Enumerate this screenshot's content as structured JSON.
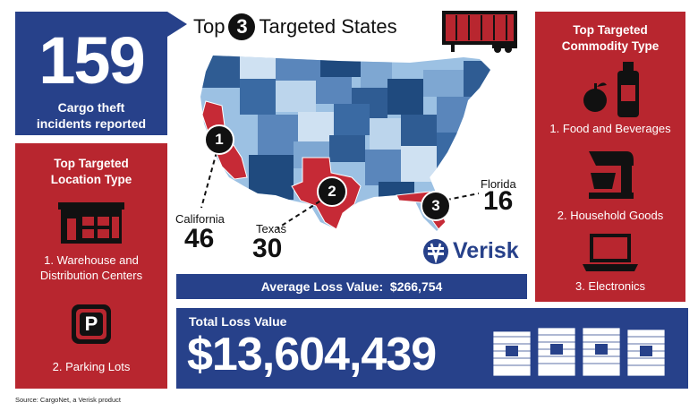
{
  "incidents": {
    "number": "159",
    "caption": "Cargo theft incidents reported"
  },
  "map": {
    "title_before": "Top",
    "title_number": "3",
    "title_after": "Targeted States",
    "states": [
      {
        "rank": "1",
        "name": "California",
        "value": "46"
      },
      {
        "rank": "2",
        "name": "Texas",
        "value": "30"
      },
      {
        "rank": "3",
        "name": "Florida",
        "value": "16"
      }
    ]
  },
  "location": {
    "title": "Top Targeted Location Type",
    "items": [
      "1. Warehouse and Distribution Centers",
      "2. Parking Lots"
    ],
    "parking_glyph": "P"
  },
  "commodity": {
    "title": "Top Targeted Commodity Type",
    "items": [
      "1. Food and Beverages",
      "2. Household Goods",
      "3. Electronics"
    ]
  },
  "average": {
    "label": "Average Loss Value:",
    "value": "$266,754"
  },
  "total": {
    "label": "Total Loss Value",
    "value": "$13,604,439"
  },
  "logo": "Verisk",
  "source": "Source: CargoNet, a Verisk product",
  "colors": {
    "navy": "#27418a",
    "red": "#b8262f",
    "map_light": "#8fb6dd",
    "map_dark": "#2f5c93"
  }
}
